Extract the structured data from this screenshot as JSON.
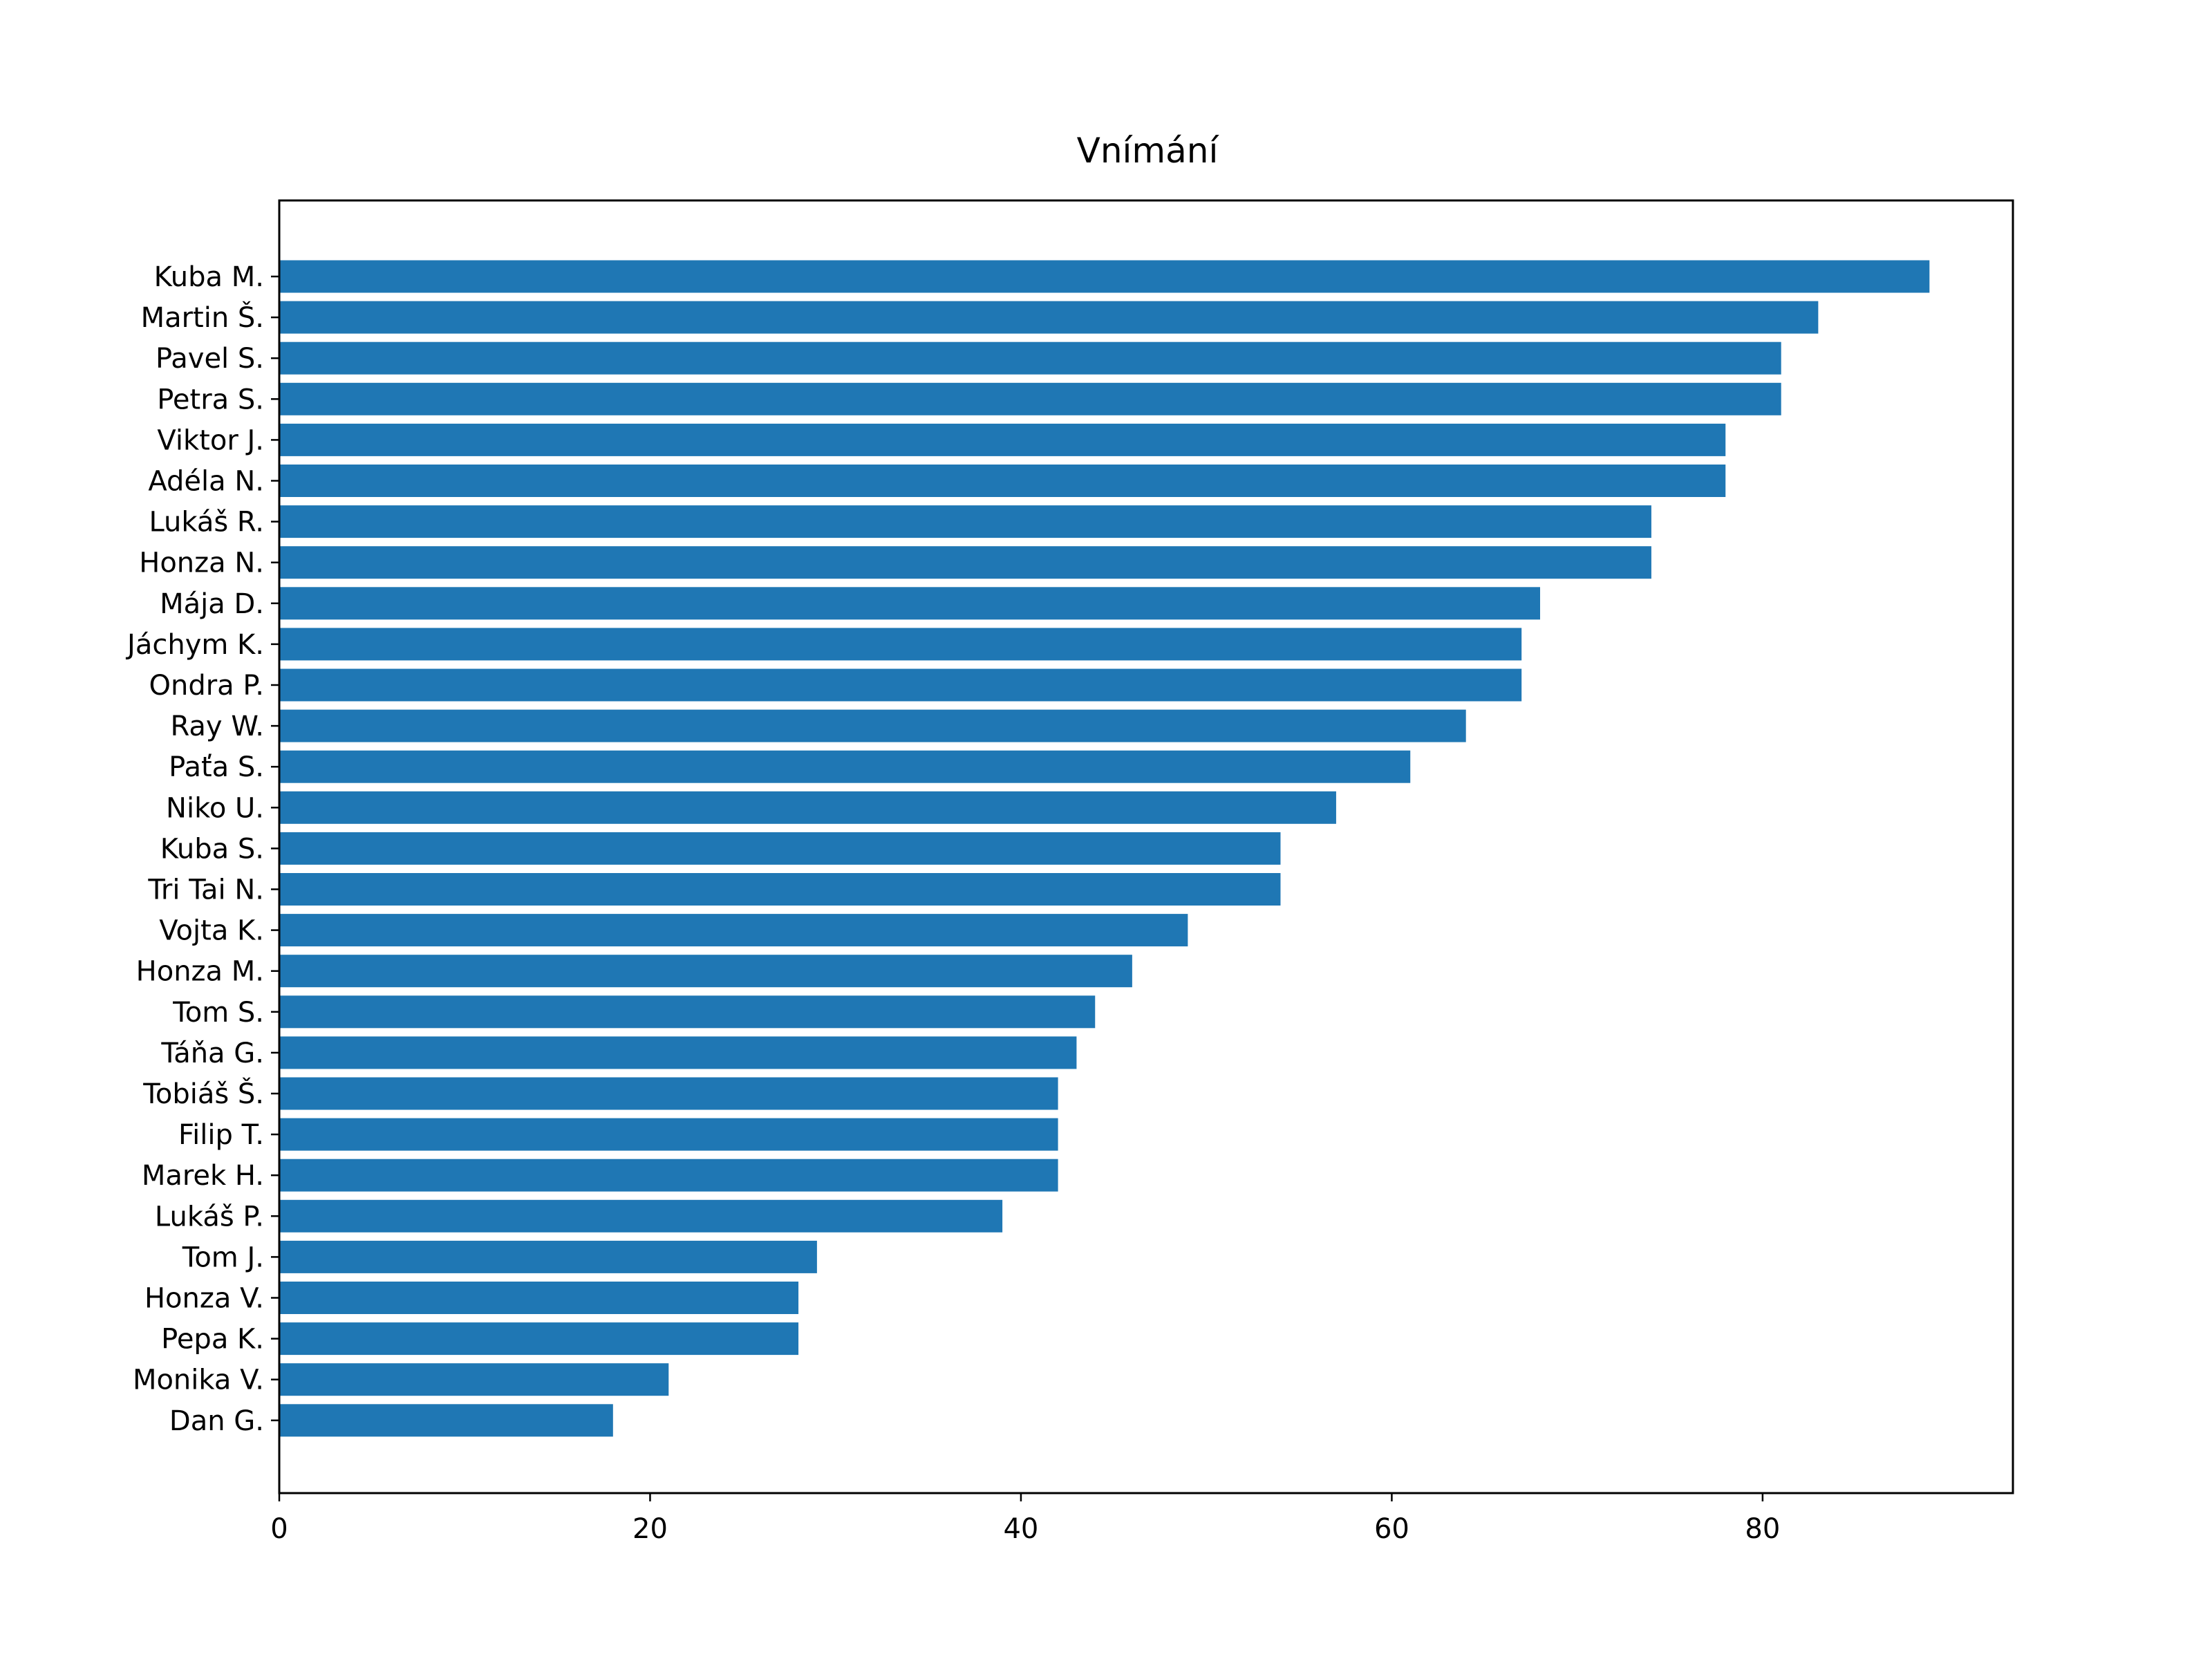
{
  "chart_data": {
    "type": "bar",
    "orientation": "horizontal",
    "title": "Vnímání",
    "xlabel": "",
    "ylabel": "",
    "xlim": [
      0,
      93.5
    ],
    "xticks": [
      0,
      20,
      40,
      60,
      80
    ],
    "grid": false,
    "color": "#1f77b4",
    "categories": [
      "Kuba M.",
      "Martin Š.",
      "Pavel S.",
      "Petra S.",
      "Viktor J.",
      "Adéla N.",
      "Lukáš R.",
      "Honza N.",
      "Mája D.",
      "Jáchym K.",
      "Ondra P.",
      "Ray W.",
      "Paťa S.",
      "Niko U.",
      "Kuba S.",
      "Tri Tai N.",
      "Vojta K.",
      "Honza M.",
      "Tom S.",
      "Táňa G.",
      "Tobiáš Š.",
      "Filip T.",
      "Marek H.",
      "Lukáš P.",
      "Tom J.",
      "Honza V.",
      "Pepa K.",
      "Monika V.",
      "Dan G."
    ],
    "values": [
      89,
      83,
      81,
      81,
      78,
      78,
      74,
      74,
      68,
      67,
      67,
      64,
      61,
      57,
      54,
      54,
      49,
      46,
      44,
      43,
      42,
      42,
      42,
      39,
      29,
      28,
      28,
      21,
      18
    ]
  }
}
